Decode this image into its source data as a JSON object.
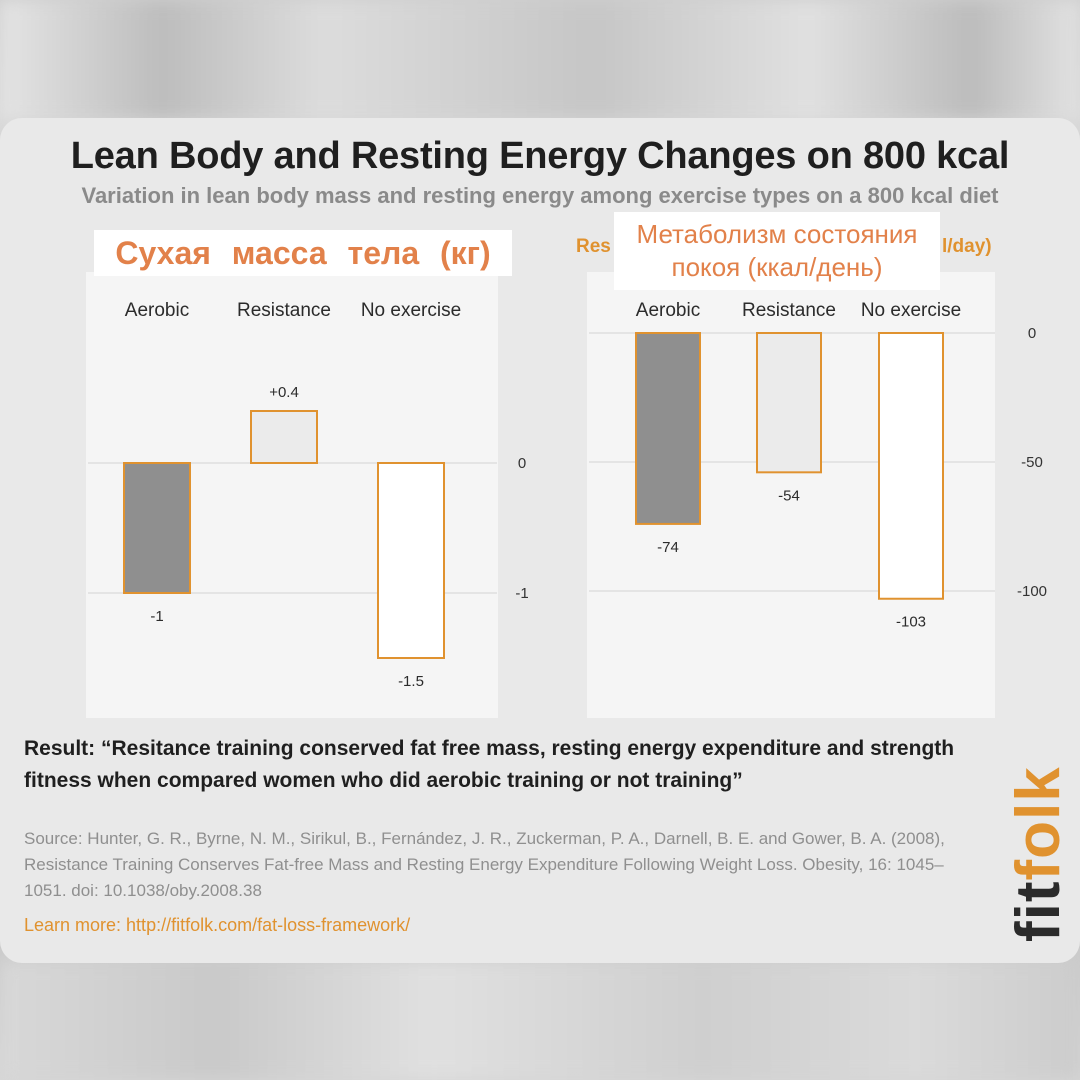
{
  "title": "Lean Body and Resting Energy Changes on 800 kcal",
  "subtitle": "Variation in lean body mass and resting energy among exercise types on a 800 kcal diet",
  "overlay_left": "Сухая масса тела (кг)",
  "overlay_right_line1": "Метаболизм состояния",
  "overlay_right_line2": "покоя (ккал/день)",
  "peek_left": "Res",
  "peek_right": "l/day)",
  "result": "Result: “Resitance training conserved fat free mass, resting energy expenditure and strength fitness when compared women who did aerobic training or not training”",
  "source": "Source: Hunter, G. R., Byrne, N. M., Sirikul, B., Fernández, J. R., Zuckerman, P. A., Darnell, B. E. and Gower, B. A. (2008), Resistance Training Conserves Fat-free Mass and Resting Energy Expenditure Following Weight Loss. Obesity, 16: 1045–1051. doi: 10.1038/oby.2008.38",
  "learn_more": "Learn more: http://fitfolk.com/fat-loss-framework/",
  "logo_a": "fit",
  "logo_b": "folk",
  "colors": {
    "accent": "#e0922f",
    "aerobic": "#8f8f8f",
    "resistance": "#ebebeb",
    "no_exercise": "#ffffff"
  },
  "chart_data": [
    {
      "type": "bar",
      "categories": [
        "Aerobic",
        "Resistance",
        "No exercise"
      ],
      "values": [
        -1,
        0.4,
        -1.5
      ],
      "value_labels": [
        "-1",
        "+0.4",
        "-1.5"
      ],
      "ticks": [
        0,
        -1
      ],
      "ylim": [
        -1.7,
        0.6
      ],
      "bar_colors": [
        "#8f8f8f",
        "#ebebeb",
        "#ffffff"
      ]
    },
    {
      "type": "bar",
      "categories": [
        "Aerobic",
        "Resistance",
        "No exercise"
      ],
      "values": [
        -74,
        -54,
        -103
      ],
      "value_labels": [
        "-74",
        "-54",
        "-103"
      ],
      "ticks": [
        0,
        -50,
        -100
      ],
      "ylim": [
        -110,
        0
      ],
      "bar_colors": [
        "#8f8f8f",
        "#ebebeb",
        "#ffffff"
      ]
    }
  ]
}
